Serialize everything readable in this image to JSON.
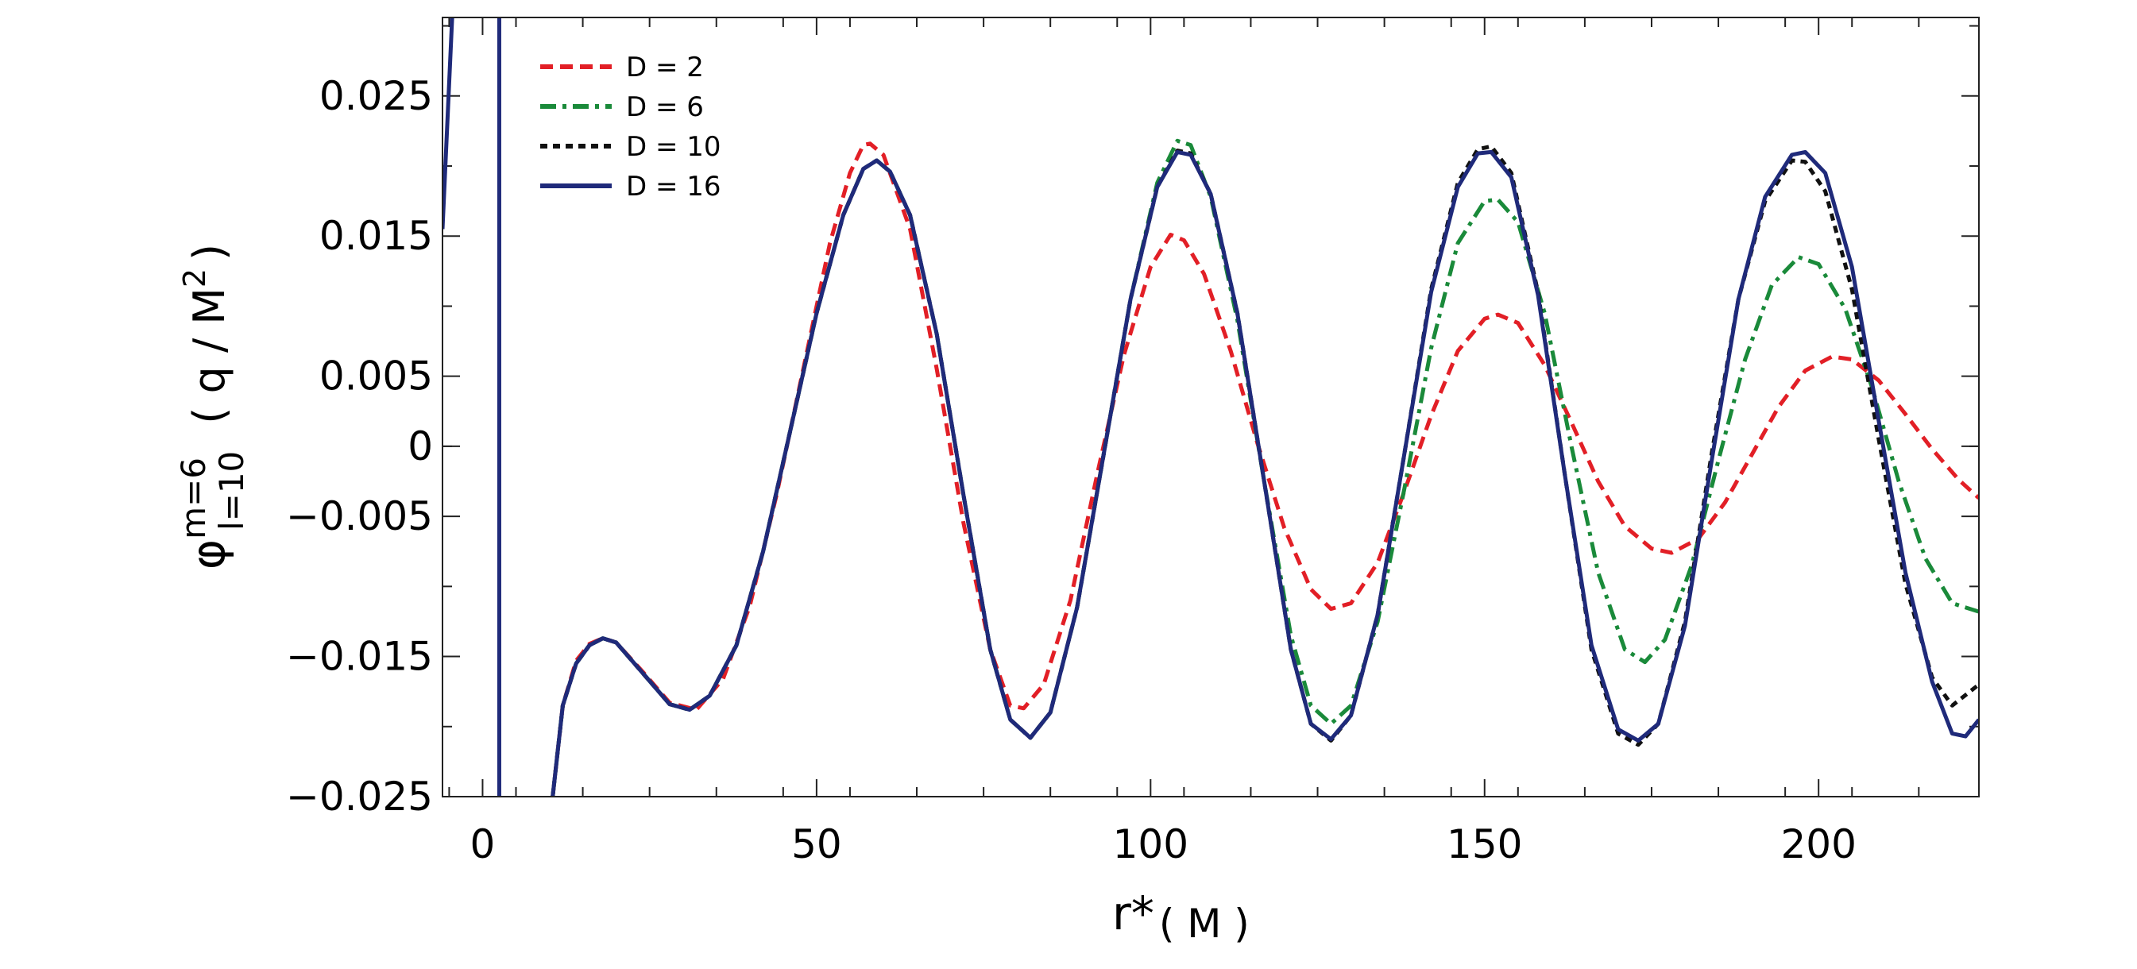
{
  "chart_data": {
    "type": "line",
    "xlim": [
      -6,
      224
    ],
    "ylim": [
      -0.025,
      0.0306
    ],
    "x_ticks": [
      {
        "value": 0,
        "label": "0"
      },
      {
        "value": 50,
        "label": "50"
      },
      {
        "value": 100,
        "label": "100"
      },
      {
        "value": 150,
        "label": "150"
      },
      {
        "value": 200,
        "label": "200"
      }
    ],
    "y_ticks": [
      {
        "value": 0.025,
        "label": "0.025"
      },
      {
        "value": 0.015,
        "label": "0.015"
      },
      {
        "value": 0.005,
        "label": "0.005"
      },
      {
        "value": 0,
        "label": "0"
      },
      {
        "value": -0.005,
        "label": "−0.005"
      },
      {
        "value": -0.015,
        "label": "−0.015"
      },
      {
        "value": -0.025,
        "label": "−0.025"
      }
    ],
    "xlabel": {
      "main": "r*",
      "unit": "( M )"
    },
    "ylabel": {
      "symbol": "φ",
      "sup": "m=6",
      "sub": "l=10",
      "unit_pre": "( q / M",
      "unit_sup": "2",
      "unit_post": ")"
    },
    "legend_position": "top-left",
    "grid": false,
    "spike": {
      "x_left": -6,
      "x_at_top": -4.5,
      "x_line": 2.5,
      "x_below": 10.5,
      "left_start_y": 0.0155
    },
    "series": [
      {
        "name": "D = 2",
        "color": "#e21f26",
        "style": "dashed",
        "points": [
          [
            10.5,
            -0.025
          ],
          [
            12,
            -0.0185
          ],
          [
            14,
            -0.0153
          ],
          [
            16,
            -0.0141
          ],
          [
            18,
            -0.0137
          ],
          [
            20,
            -0.014
          ],
          [
            24,
            -0.0161
          ],
          [
            28,
            -0.0183
          ],
          [
            32,
            -0.0188
          ],
          [
            36,
            -0.0166
          ],
          [
            40,
            -0.0114
          ],
          [
            44,
            -0.0035
          ],
          [
            48,
            0.0055
          ],
          [
            52,
            0.0145
          ],
          [
            55,
            0.0195
          ],
          [
            57,
            0.0215
          ],
          [
            58,
            0.0216
          ],
          [
            60,
            0.0208
          ],
          [
            64,
            0.0155
          ],
          [
            68,
            0.0055
          ],
          [
            72,
            -0.0055
          ],
          [
            76,
            -0.0145
          ],
          [
            79,
            -0.0185
          ],
          [
            81,
            -0.0187
          ],
          [
            84,
            -0.017
          ],
          [
            88,
            -0.011
          ],
          [
            92,
            -0.002
          ],
          [
            96,
            0.0065
          ],
          [
            100,
            0.0128
          ],
          [
            103,
            0.0151
          ],
          [
            105,
            0.0147
          ],
          [
            108,
            0.0123
          ],
          [
            112,
            0.0068
          ],
          [
            116,
            0.0002
          ],
          [
            120,
            -0.0058
          ],
          [
            124,
            -0.0102
          ],
          [
            127,
            -0.0116
          ],
          [
            130,
            -0.0112
          ],
          [
            134,
            -0.0083
          ],
          [
            138,
            -0.0032
          ],
          [
            142,
            0.0022
          ],
          [
            146,
            0.0068
          ],
          [
            150,
            0.0091
          ],
          [
            152,
            0.0094
          ],
          [
            155,
            0.0088
          ],
          [
            159,
            0.0058
          ],
          [
            163,
            0.0017
          ],
          [
            167,
            -0.0025
          ],
          [
            171,
            -0.0057
          ],
          [
            175,
            -0.0073
          ],
          [
            178,
            -0.0076
          ],
          [
            182,
            -0.0066
          ],
          [
            186,
            -0.004
          ],
          [
            190,
            -0.0006
          ],
          [
            194,
            0.0028
          ],
          [
            198,
            0.0054
          ],
          [
            202,
            0.0064
          ],
          [
            205,
            0.0062
          ],
          [
            209,
            0.0047
          ],
          [
            213,
            0.0023
          ],
          [
            217,
            -0.0002
          ],
          [
            221,
            -0.0024
          ],
          [
            224,
            -0.0037
          ]
        ]
      },
      {
        "name": "D = 6",
        "color": "#1a8a3a",
        "style": "dash-dot",
        "points": [
          [
            10.5,
            -0.025
          ],
          [
            12,
            -0.0185
          ],
          [
            14,
            -0.0155
          ],
          [
            16,
            -0.0142
          ],
          [
            18,
            -0.0137
          ],
          [
            20,
            -0.014
          ],
          [
            24,
            -0.0162
          ],
          [
            28,
            -0.0184
          ],
          [
            31,
            -0.0188
          ],
          [
            34,
            -0.0178
          ],
          [
            38,
            -0.0142
          ],
          [
            42,
            -0.0075
          ],
          [
            46,
            0.001
          ],
          [
            50,
            0.0095
          ],
          [
            54,
            0.0165
          ],
          [
            57,
            0.0198
          ],
          [
            59,
            0.0204
          ],
          [
            61,
            0.0196
          ],
          [
            64,
            0.0165
          ],
          [
            68,
            0.008
          ],
          [
            72,
            -0.0035
          ],
          [
            76,
            -0.0145
          ],
          [
            79,
            -0.0195
          ],
          [
            82,
            -0.0208
          ],
          [
            85,
            -0.019
          ],
          [
            89,
            -0.0115
          ],
          [
            93,
            -0.0005
          ],
          [
            97,
            0.0105
          ],
          [
            101,
            0.0188
          ],
          [
            104,
            0.0218
          ],
          [
            106,
            0.0215
          ],
          [
            109,
            0.0178
          ],
          [
            113,
            0.009
          ],
          [
            117,
            -0.0025
          ],
          [
            121,
            -0.0135
          ],
          [
            124,
            -0.0185
          ],
          [
            127,
            -0.0198
          ],
          [
            130,
            -0.0185
          ],
          [
            134,
            -0.0125
          ],
          [
            138,
            -0.003
          ],
          [
            142,
            0.007
          ],
          [
            146,
            0.0145
          ],
          [
            150,
            0.0175
          ],
          [
            152,
            0.0176
          ],
          [
            155,
            0.016
          ],
          [
            159,
            0.0095
          ],
          [
            163,
            0.0
          ],
          [
            167,
            -0.009
          ],
          [
            171,
            -0.0145
          ],
          [
            174,
            -0.0154
          ],
          [
            177,
            -0.0138
          ],
          [
            181,
            -0.0085
          ],
          [
            185,
            -0.001
          ],
          [
            189,
            0.0062
          ],
          [
            193,
            0.0115
          ],
          [
            197,
            0.0135
          ],
          [
            200,
            0.013
          ],
          [
            204,
            0.0098
          ],
          [
            208,
            0.0042
          ],
          [
            212,
            -0.0025
          ],
          [
            216,
            -0.008
          ],
          [
            220,
            -0.0112
          ],
          [
            224,
            -0.0118
          ]
        ]
      },
      {
        "name": "D = 10",
        "color": "#111111",
        "style": "dotted",
        "points": [
          [
            10.5,
            -0.025
          ],
          [
            12,
            -0.0185
          ],
          [
            14,
            -0.0155
          ],
          [
            16,
            -0.0142
          ],
          [
            18,
            -0.0137
          ],
          [
            20,
            -0.014
          ],
          [
            24,
            -0.0162
          ],
          [
            28,
            -0.0184
          ],
          [
            31,
            -0.0188
          ],
          [
            34,
            -0.0178
          ],
          [
            38,
            -0.0142
          ],
          [
            42,
            -0.0075
          ],
          [
            46,
            0.001
          ],
          [
            50,
            0.0095
          ],
          [
            54,
            0.0165
          ],
          [
            57,
            0.0198
          ],
          [
            59,
            0.0204
          ],
          [
            61,
            0.0196
          ],
          [
            64,
            0.0165
          ],
          [
            68,
            0.008
          ],
          [
            72,
            -0.0035
          ],
          [
            76,
            -0.0145
          ],
          [
            79,
            -0.0195
          ],
          [
            82,
            -0.0208
          ],
          [
            85,
            -0.019
          ],
          [
            89,
            -0.0115
          ],
          [
            93,
            -0.0005
          ],
          [
            97,
            0.0105
          ],
          [
            101,
            0.0185
          ],
          [
            104,
            0.0211
          ],
          [
            106,
            0.0209
          ],
          [
            109,
            0.018
          ],
          [
            113,
            0.0095
          ],
          [
            117,
            -0.0025
          ],
          [
            121,
            -0.0145
          ],
          [
            124,
            -0.0198
          ],
          [
            127,
            -0.021
          ],
          [
            130,
            -0.0192
          ],
          [
            134,
            -0.012
          ],
          [
            138,
            -0.0005
          ],
          [
            142,
            0.0112
          ],
          [
            146,
            0.0188
          ],
          [
            149,
            0.0212
          ],
          [
            151,
            0.0214
          ],
          [
            154,
            0.0195
          ],
          [
            158,
            0.011
          ],
          [
            162,
            -0.002
          ],
          [
            166,
            -0.0145
          ],
          [
            170,
            -0.0205
          ],
          [
            173,
            -0.0213
          ],
          [
            176,
            -0.0198
          ],
          [
            180,
            -0.0125
          ],
          [
            184,
            -0.0005
          ],
          [
            188,
            0.0105
          ],
          [
            192,
            0.0175
          ],
          [
            196,
            0.0204
          ],
          [
            198,
            0.0203
          ],
          [
            201,
            0.0182
          ],
          [
            205,
            0.0112
          ],
          [
            209,
            0.0005
          ],
          [
            213,
            -0.0098
          ],
          [
            217,
            -0.0165
          ],
          [
            220,
            -0.0185
          ],
          [
            224,
            -0.017
          ]
        ]
      },
      {
        "name": "D = 16",
        "color": "#1f2a7a",
        "style": "solid",
        "points": [
          [
            10.5,
            -0.025
          ],
          [
            12,
            -0.0185
          ],
          [
            14,
            -0.0155
          ],
          [
            16,
            -0.0142
          ],
          [
            18,
            -0.0137
          ],
          [
            20,
            -0.014
          ],
          [
            24,
            -0.0162
          ],
          [
            28,
            -0.0184
          ],
          [
            31,
            -0.0188
          ],
          [
            34,
            -0.0178
          ],
          [
            38,
            -0.0142
          ],
          [
            42,
            -0.0075
          ],
          [
            46,
            0.001
          ],
          [
            50,
            0.0095
          ],
          [
            54,
            0.0165
          ],
          [
            57,
            0.0198
          ],
          [
            59,
            0.0204
          ],
          [
            61,
            0.0196
          ],
          [
            64,
            0.0165
          ],
          [
            68,
            0.008
          ],
          [
            72,
            -0.0035
          ],
          [
            76,
            -0.0145
          ],
          [
            79,
            -0.0195
          ],
          [
            82,
            -0.0208
          ],
          [
            85,
            -0.019
          ],
          [
            89,
            -0.0115
          ],
          [
            93,
            -0.0005
          ],
          [
            97,
            0.0105
          ],
          [
            101,
            0.0185
          ],
          [
            104,
            0.021
          ],
          [
            106,
            0.0208
          ],
          [
            109,
            0.018
          ],
          [
            113,
            0.0095
          ],
          [
            117,
            -0.0025
          ],
          [
            121,
            -0.0145
          ],
          [
            124,
            -0.0198
          ],
          [
            127,
            -0.0209
          ],
          [
            130,
            -0.0192
          ],
          [
            134,
            -0.012
          ],
          [
            138,
            -0.0005
          ],
          [
            142,
            0.011
          ],
          [
            146,
            0.0185
          ],
          [
            149,
            0.0209
          ],
          [
            151,
            0.021
          ],
          [
            154,
            0.0192
          ],
          [
            158,
            0.0108
          ],
          [
            162,
            -0.002
          ],
          [
            166,
            -0.0142
          ],
          [
            170,
            -0.0202
          ],
          [
            173,
            -0.021
          ],
          [
            176,
            -0.0198
          ],
          [
            180,
            -0.0128
          ],
          [
            184,
            -0.001
          ],
          [
            188,
            0.0105
          ],
          [
            192,
            0.0178
          ],
          [
            196,
            0.0208
          ],
          [
            198,
            0.021
          ],
          [
            201,
            0.0195
          ],
          [
            205,
            0.0128
          ],
          [
            209,
            0.0018
          ],
          [
            213,
            -0.009
          ],
          [
            217,
            -0.0168
          ],
          [
            220,
            -0.0205
          ],
          [
            222,
            -0.0207
          ],
          [
            224,
            -0.0195
          ]
        ]
      }
    ]
  }
}
